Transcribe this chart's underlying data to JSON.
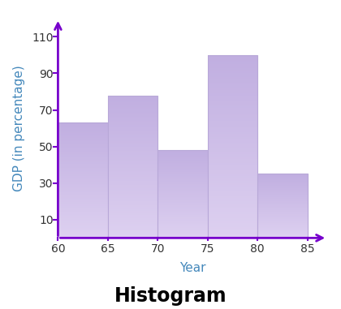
{
  "bin_edges": [
    60,
    65,
    70,
    75,
    80,
    85
  ],
  "bar_heights": [
    63,
    78,
    48,
    100,
    35
  ],
  "bar_color_top": "#c0aee0",
  "bar_color_bottom": "#ddd0f0",
  "bar_edge_color": "#b8a8d8",
  "axis_color": "#7700cc",
  "label_color": "#4488bb",
  "tick_label_color": "#333333",
  "title": "Histogram",
  "xlabel": "Year",
  "ylabel": "GDP (in percentage)",
  "yticks": [
    10,
    30,
    50,
    70,
    90,
    110
  ],
  "xticks": [
    60,
    65,
    70,
    75,
    80,
    85
  ],
  "ylim": [
    0,
    120
  ],
  "xlim": [
    60,
    87
  ],
  "title_fontsize": 17,
  "label_fontsize": 11,
  "tick_fontsize": 10,
  "background_color": "#ffffff"
}
